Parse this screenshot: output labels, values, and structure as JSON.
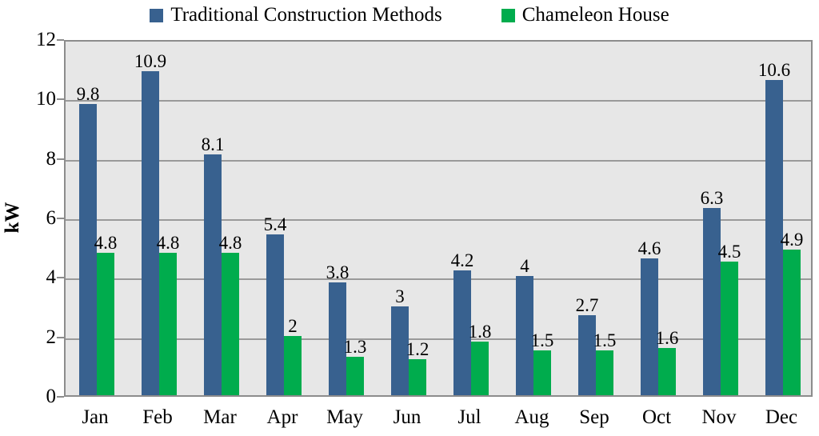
{
  "chart_data": {
    "type": "bar",
    "categories": [
      "Jan",
      "Feb",
      "Mar",
      "Apr",
      "May",
      "Jun",
      "Jul",
      "Aug",
      "Sep",
      "Oct",
      "Nov",
      "Dec"
    ],
    "series": [
      {
        "name": "Traditional Construction Methods",
        "color": "#38618F",
        "values": [
          9.8,
          10.9,
          8.1,
          5.4,
          3.8,
          3,
          4.2,
          4,
          2.7,
          4.6,
          6.3,
          10.6
        ]
      },
      {
        "name": "Chameleon House",
        "color": "#00AC4D",
        "values": [
          4.8,
          4.8,
          4.8,
          2,
          1.3,
          1.2,
          1.8,
          1.5,
          1.5,
          1.6,
          4.5,
          4.9
        ]
      }
    ],
    "title": "",
    "xlabel": "",
    "ylabel": "kW",
    "ylim": [
      0,
      12
    ],
    "yticks": [
      0,
      2,
      4,
      6,
      8,
      10,
      12
    ],
    "grid": true,
    "legend_position": "top",
    "plot_bg_color": "#E7E7E7",
    "gridline_color": "#9A9A9A",
    "border_color": "#8C8C8C",
    "text_color": "#000000"
  }
}
